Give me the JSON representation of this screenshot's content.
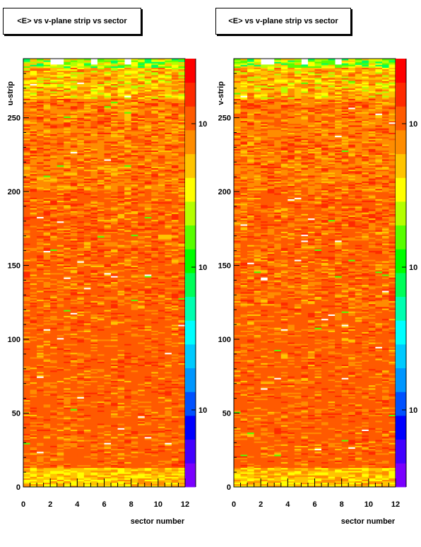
{
  "chart_data": [
    {
      "type": "heatmap",
      "title": "<E> vs v-plane strip vs sector",
      "xlabel": "sector number",
      "ylabel": "u-strip",
      "xlim": [
        0,
        12
      ],
      "ylim": [
        0,
        290
      ],
      "xticks": [
        "0",
        "2",
        "4",
        "6",
        "8",
        "10",
        "12"
      ],
      "yticks": [
        "0",
        "50",
        "100",
        "150",
        "200",
        "250"
      ],
      "colorbar_tick_labels": [
        "10",
        "10",
        "10"
      ],
      "colorbar_colors": [
        "#7a00ff",
        "#4200ff",
        "#0000ff",
        "#0051ff",
        "#0096ff",
        "#00caff",
        "#00ffff",
        "#00ffb0",
        "#00ff5a",
        "#00ff00",
        "#57ff00",
        "#b4ff00",
        "#ffff00",
        "#ffc400",
        "#ff8c00",
        "#ff5a00",
        "#ff2a00",
        "#ff0000"
      ],
      "x_bins": 24,
      "y_bins": 290,
      "value_distribution": "mostly red/orange at low strips, becoming orange-yellow-green near the top strips (~260-290); white/green outlier bins scattered"
    },
    {
      "type": "heatmap",
      "title": "<E> vs v-plane strip vs sector",
      "xlabel": "sector number",
      "ylabel": "v-strip",
      "xlim": [
        0,
        12
      ],
      "ylim": [
        0,
        290
      ],
      "xticks": [
        "0",
        "2",
        "4",
        "6",
        "8",
        "10",
        "12"
      ],
      "yticks": [
        "0",
        "50",
        "100",
        "150",
        "200",
        "250"
      ],
      "colorbar_tick_labels": [
        "10",
        "10",
        "10"
      ],
      "colorbar_colors": [
        "#7a00ff",
        "#4200ff",
        "#0000ff",
        "#0051ff",
        "#0096ff",
        "#00caff",
        "#00ffff",
        "#00ffb0",
        "#00ff5a",
        "#00ff00",
        "#57ff00",
        "#b4ff00",
        "#ffff00",
        "#ffc400",
        "#ff8c00",
        "#ff5a00",
        "#ff2a00",
        "#ff0000"
      ],
      "x_bins": 24,
      "y_bins": 290,
      "value_distribution": "mostly red/orange at low strips, becoming orange-yellow-green near the top strips (~260-290); white/green outlier bins scattered"
    }
  ]
}
